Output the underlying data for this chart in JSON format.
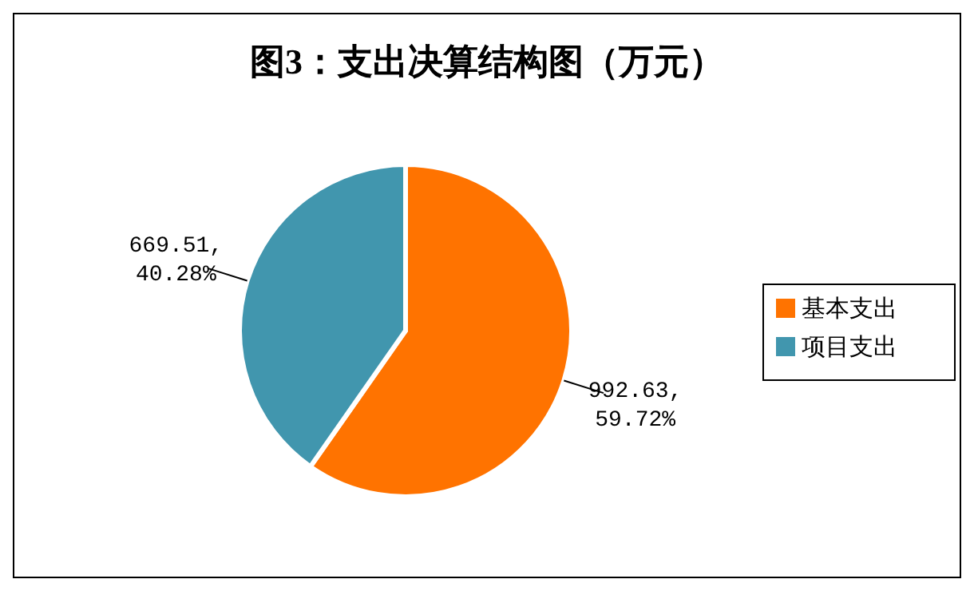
{
  "chart_data": {
    "type": "pie",
    "title": "图3：支出决算结构图（万元）",
    "categories": [
      "基本支出",
      "项目支出"
    ],
    "values": [
      992.63,
      669.51
    ],
    "colors": [
      "#ff7300",
      "#4196ae"
    ],
    "value_labels": [
      "992.63,\n59.72%",
      "669.51,\n40.28%"
    ],
    "legend": "right"
  }
}
